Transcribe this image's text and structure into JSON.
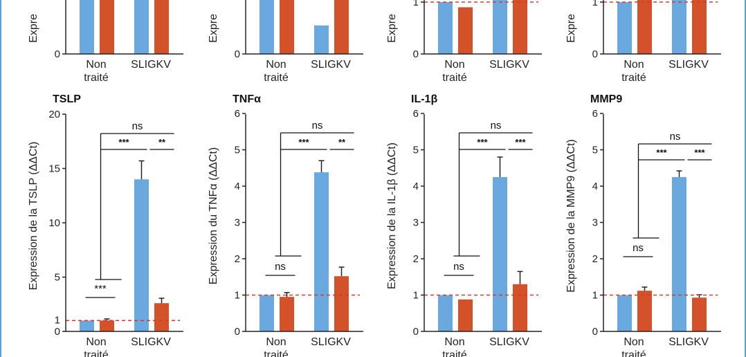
{
  "colors": {
    "blue": "#6aa9df",
    "orange": "#d4522a",
    "axis": "#222222",
    "reference": "#d23a2a"
  },
  "chart_data": [
    {
      "type": "bar",
      "partial": true,
      "title": "",
      "ylabel": "Expre",
      "yticks": [
        "0"
      ],
      "categories": [
        "Non\ntraité",
        "SLIGKV"
      ],
      "series": [
        {
          "values": [
            null,
            null
          ]
        },
        {
          "values": [
            null,
            null
          ]
        }
      ]
    },
    {
      "type": "bar",
      "partial": true,
      "title": "",
      "ylabel": "Expre",
      "yticks": [
        "0"
      ],
      "categories": [
        "Non\ntraité",
        "SLIGKV"
      ],
      "series": [
        {
          "values": [
            null,
            0.55
          ]
        },
        {
          "values": [
            null,
            null
          ]
        }
      ]
    },
    {
      "type": "bar",
      "partial": true,
      "title": "",
      "ylabel": "Expre",
      "yticks": [
        "0",
        "1"
      ],
      "categories": [
        "Non\ntraité",
        "SLIGKV"
      ],
      "series": [
        {
          "values": [
            1.0,
            null
          ]
        },
        {
          "values": [
            0.9,
            null
          ]
        }
      ]
    },
    {
      "type": "bar",
      "partial": true,
      "title": "",
      "ylabel": "Expre",
      "yticks": [
        "0",
        "1"
      ],
      "categories": [
        "Non\ntraité",
        "SLIGKV"
      ],
      "series": [
        {
          "values": [
            1.0,
            null
          ]
        },
        {
          "values": [
            1.05,
            null
          ]
        }
      ]
    },
    {
      "type": "bar",
      "title": "TSLP",
      "ylabel": "Expression de la TSLP (ΔΔCt)",
      "ylim": [
        0,
        20
      ],
      "yticks": [
        "0",
        "5",
        "10",
        "15",
        "20"
      ],
      "reference_label": "1",
      "categories": [
        "Non\ntraité",
        "SLIGKV"
      ],
      "series": [
        {
          "values": [
            1.0,
            14.0
          ],
          "errors": [
            0.0,
            1.7
          ]
        },
        {
          "values": [
            1.0,
            2.6
          ],
          "errors": [
            0.15,
            0.45
          ]
        }
      ],
      "significance": [
        "***",
        "***",
        "**",
        "ns"
      ]
    },
    {
      "type": "bar",
      "title": "TNFα",
      "ylabel": "Expression du TNFα (ΔΔCt)",
      "ylim": [
        0,
        6
      ],
      "yticks": [
        "0",
        "1",
        "2",
        "3",
        "4",
        "5",
        "6"
      ],
      "categories": [
        "Non\ntraité",
        "SLIGKV"
      ],
      "series": [
        {
          "values": [
            1.0,
            4.38
          ],
          "errors": [
            0.0,
            0.32
          ]
        },
        {
          "values": [
            0.95,
            1.52
          ],
          "errors": [
            0.12,
            0.25
          ]
        }
      ],
      "significance": [
        "ns",
        "***",
        "**",
        "ns"
      ]
    },
    {
      "type": "bar",
      "title": "IL-1β",
      "ylabel": "Expression de la IL-1β (ΔΔCt)",
      "ylim": [
        0,
        6
      ],
      "yticks": [
        "0",
        "1",
        "2",
        "3",
        "4",
        "5",
        "6"
      ],
      "categories": [
        "Non\ntraité",
        "SLIGKV"
      ],
      "series": [
        {
          "values": [
            1.0,
            4.25
          ],
          "errors": [
            0.0,
            0.55
          ]
        },
        {
          "values": [
            0.88,
            1.3
          ],
          "errors": [
            0.0,
            0.35
          ]
        }
      ],
      "significance": [
        "ns",
        "***",
        "***",
        "ns"
      ]
    },
    {
      "type": "bar",
      "title": "MMP9",
      "ylabel": "Expression de la MMP9 (ΔΔCt)",
      "ylim": [
        0,
        6
      ],
      "yticks": [
        "0",
        "1",
        "2",
        "3",
        "4",
        "5",
        "6"
      ],
      "categories": [
        "Non\ntraité",
        "SLIGKV"
      ],
      "series": [
        {
          "values": [
            1.0,
            4.25
          ],
          "errors": [
            0.0,
            0.17
          ]
        },
        {
          "values": [
            1.12,
            0.93
          ],
          "errors": [
            0.1,
            0.08
          ]
        }
      ],
      "significance": [
        "ns",
        "***",
        "***",
        "ns"
      ]
    }
  ]
}
